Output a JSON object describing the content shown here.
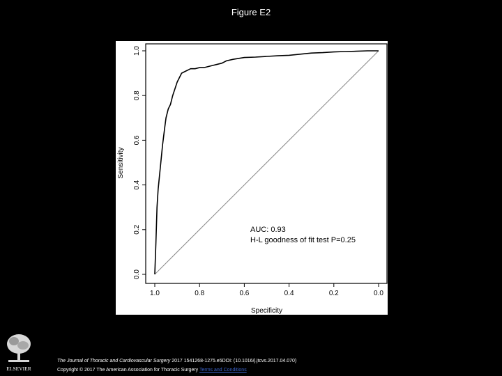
{
  "slide": {
    "title": "Figure E2"
  },
  "footer": {
    "journal": "The Journal of Thoracic and Cardiovascular Surgery",
    "citation": " 2017 1541268-1275.e5DOI: (10.1016/j.jtcvs.2017.04.070)",
    "copyright": "Copyright © 2017 The American Association for Thoracic Surgery",
    "link_text": "Terms and Conditions",
    "logo_text": "ELSEVIER"
  },
  "colors": {
    "background": "#000000",
    "plot_background": "#ffffff",
    "curve": "#000000",
    "diagonal": "#888888",
    "link": "#3a62c9"
  },
  "chart_data": {
    "type": "line",
    "xlabel": "Specificity",
    "ylabel": "Sensitivity",
    "x_reversed": true,
    "xlim": [
      1.0,
      0.0
    ],
    "ylim": [
      0.0,
      1.0
    ],
    "x_ticks": [
      "1.0",
      "0.8",
      "0.6",
      "0.4",
      "0.2",
      "0.0"
    ],
    "y_ticks": [
      "0.0",
      "0.2",
      "0.4",
      "0.6",
      "0.8",
      "1.0"
    ],
    "grid": false,
    "annotations": [
      "AUC: 0.93",
      "H-L goodness of fit  test P=0.25"
    ],
    "series": [
      {
        "specificity": [
          1.0,
          0.995,
          0.99,
          0.985,
          0.98,
          0.975,
          0.97,
          0.965,
          0.96,
          0.955,
          0.95,
          0.94,
          0.93,
          0.92,
          0.91,
          0.9,
          0.89,
          0.88,
          0.87,
          0.86,
          0.85,
          0.84,
          0.83,
          0.82,
          0.8,
          0.78,
          0.76,
          0.74,
          0.72,
          0.7,
          0.68,
          0.65,
          0.6,
          0.55,
          0.5,
          0.45,
          0.4,
          0.35,
          0.3,
          0.25,
          0.2,
          0.15,
          0.1,
          0.05,
          0.02,
          0.0
        ],
        "sensitivity": [
          0.0,
          0.14,
          0.3,
          0.38,
          0.43,
          0.48,
          0.53,
          0.58,
          0.62,
          0.66,
          0.7,
          0.74,
          0.76,
          0.8,
          0.83,
          0.86,
          0.88,
          0.9,
          0.905,
          0.91,
          0.915,
          0.92,
          0.92,
          0.92,
          0.925,
          0.925,
          0.93,
          0.935,
          0.94,
          0.945,
          0.955,
          0.962,
          0.97,
          0.972,
          0.975,
          0.978,
          0.98,
          0.985,
          0.99,
          0.992,
          0.995,
          0.997,
          0.998,
          1.0,
          1.0,
          1.0
        ]
      },
      {
        "specificity": [
          1.0,
          0.0
        ],
        "sensitivity": [
          0.0,
          1.0
        ]
      }
    ]
  }
}
